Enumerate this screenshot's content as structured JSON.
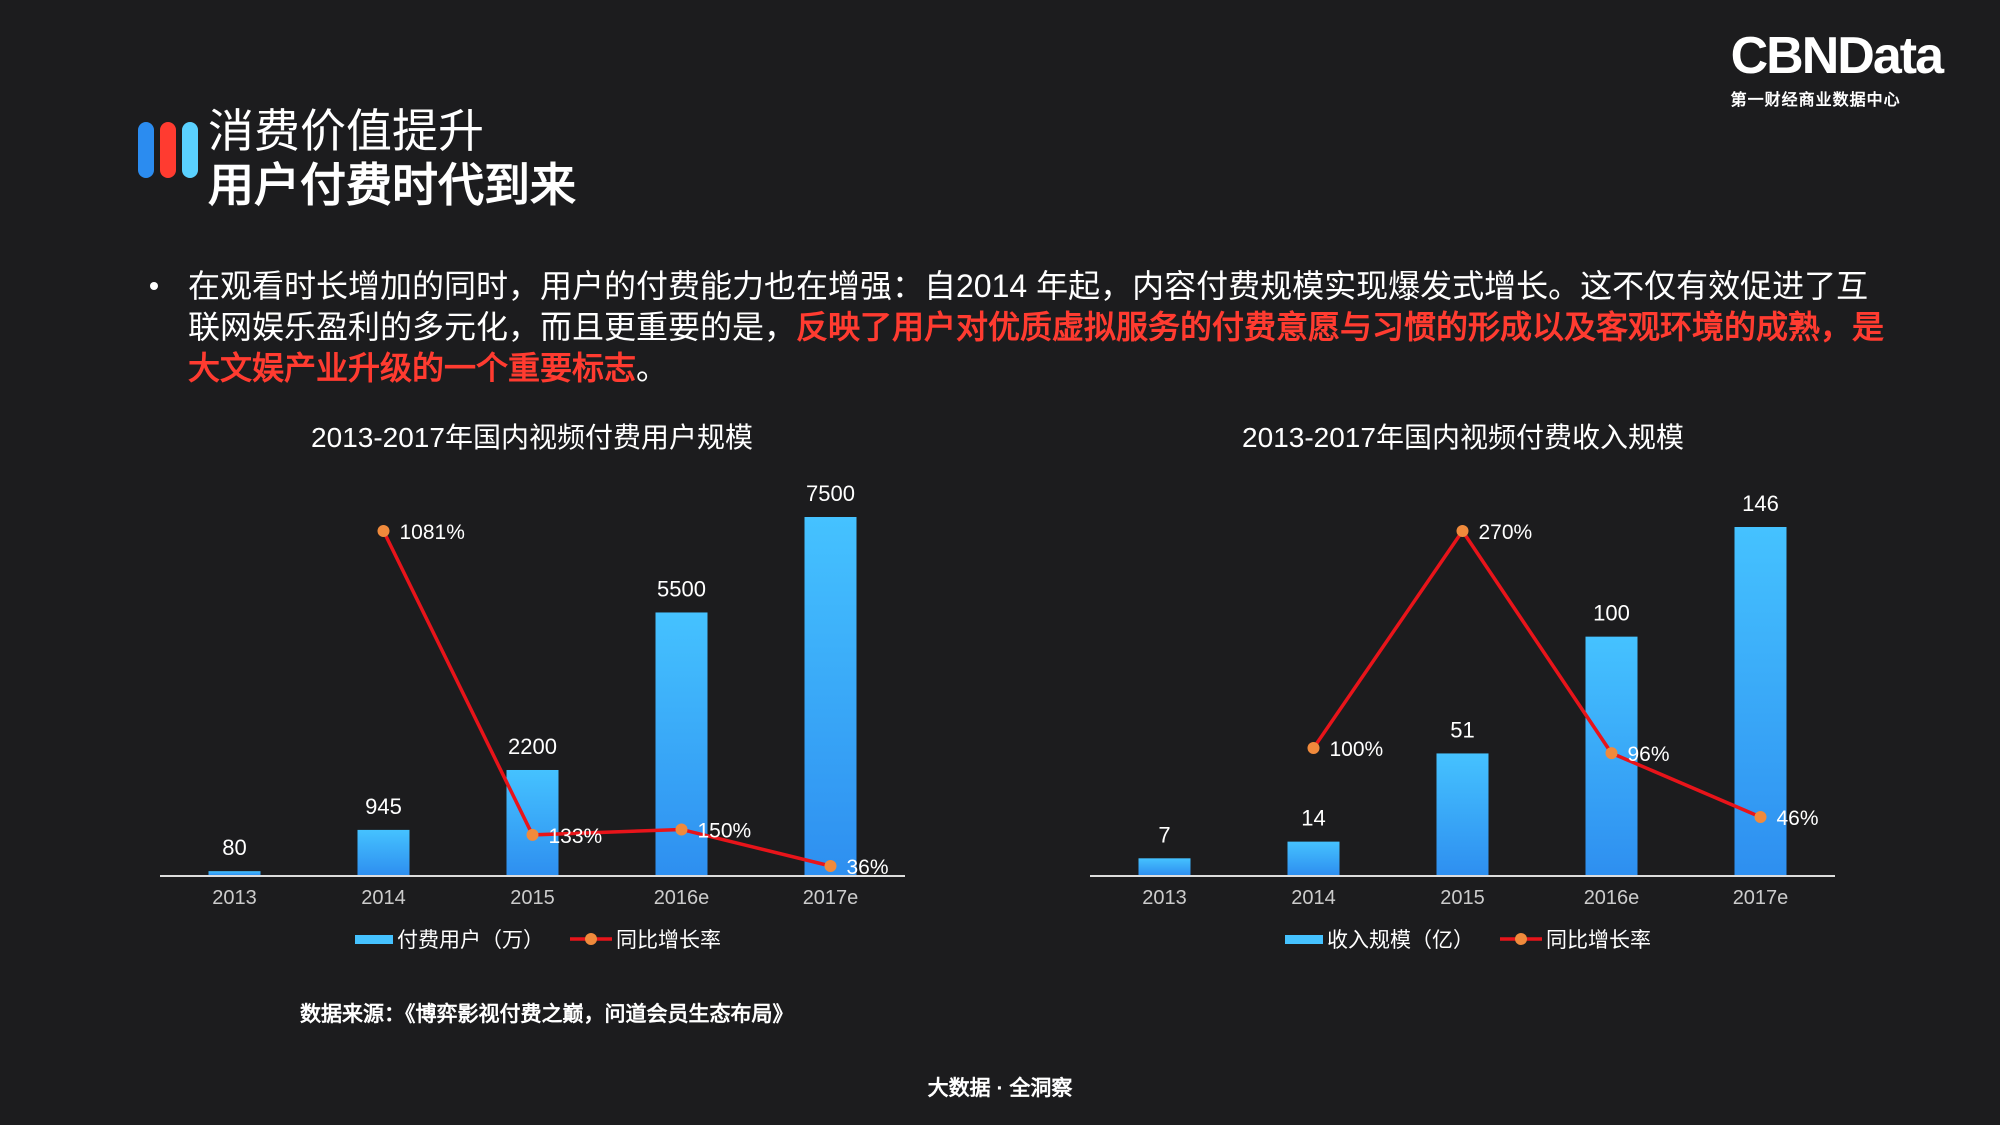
{
  "brand": {
    "name": "CBNData",
    "tagline": "第一财经商业数据中心"
  },
  "accent_bars": [
    "#2b8cf0",
    "#ff3b30",
    "#5ad1ff"
  ],
  "title": {
    "line1": "消费价值提升",
    "line2": "用户付费时代到来"
  },
  "paragraph": {
    "normal": "在观看时长增加的同时，用户的付费能力也在增强：自2014 年起，内容付费规模实现爆发式增长。这不仅有效促进了互联网娱乐盈利的多元化，而且更重要的是，",
    "highlight": "反映了用户对优质虚拟服务的付费意愿与习惯的形成以及客观环境的成熟，是大文娱产业升级的一个重要标志",
    "end": "。"
  },
  "colors": {
    "bar_top": "#45c2ff",
    "bar_bottom": "#2e8ff0",
    "line": "#e8141a",
    "marker": "#f08a3c",
    "highlight": "#ff3b30"
  },
  "chart_data": [
    {
      "type": "bar",
      "title": "2013-2017年国内视频付费用户规模",
      "categories": [
        "2013",
        "2014",
        "2015",
        "2016e",
        "2017e"
      ],
      "series": [
        {
          "name": "付费用户（万）",
          "type": "bar",
          "values": [
            80,
            945,
            2200,
            5500,
            7500
          ],
          "labels": [
            "80",
            "945",
            "2200",
            "5500",
            "7500"
          ]
        },
        {
          "name": "同比增长率",
          "type": "line",
          "values": [
            null,
            1081,
            133,
            150,
            36
          ],
          "labels": [
            "",
            "1081%",
            "133%",
            "150%",
            "36%"
          ]
        }
      ],
      "legend_position": "bottom",
      "grid": false
    },
    {
      "type": "bar",
      "title": "2013-2017年国内视频付费收入规模",
      "categories": [
        "2013",
        "2014",
        "2015",
        "2016e",
        "2017e"
      ],
      "series": [
        {
          "name": "收入规模（亿）",
          "type": "bar",
          "values": [
            7,
            14,
            51,
            100,
            146
          ],
          "labels": [
            "7",
            "14",
            "51",
            "100",
            "146"
          ]
        },
        {
          "name": "同比增长率",
          "type": "line",
          "values": [
            null,
            100,
            270,
            96,
            46
          ],
          "labels": [
            "",
            "100%",
            "270%",
            "96%",
            "46%"
          ]
        }
      ],
      "legend_position": "bottom",
      "grid": false
    }
  ],
  "source": "数据来源：《博弈影视付费之巅，问道会员生态布局》",
  "footer": "大数据 · 全洞察"
}
